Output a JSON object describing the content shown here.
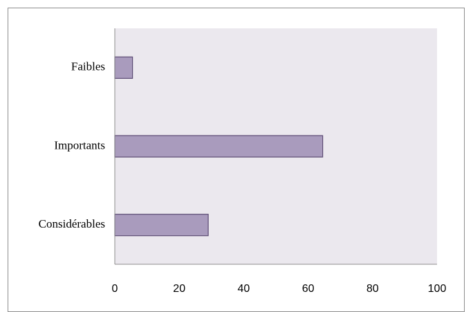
{
  "chart_data": {
    "type": "bar",
    "orientation": "horizontal",
    "categories": [
      "Faibles",
      "Importants",
      "Considérables"
    ],
    "values": [
      5.5,
      64.5,
      29
    ],
    "xlim": [
      0,
      100
    ],
    "xticks": [
      "0",
      "20",
      "40",
      "60",
      "80",
      "100"
    ],
    "title": "",
    "xlabel": "",
    "ylabel": "",
    "grid": false,
    "legend": "none",
    "colors": {
      "bar_fill": "#a99bbd",
      "bar_stroke": "#5b4a73",
      "plot_background": "#ebe8ee",
      "axis": "#8c8c8c"
    }
  }
}
